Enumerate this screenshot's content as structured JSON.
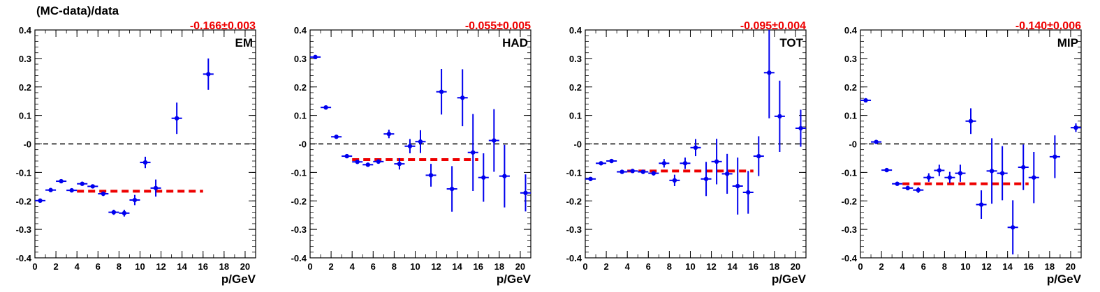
{
  "y_axis_label": "(MC-data)/data",
  "chart_data": [
    {
      "type": "scatter",
      "panel_label": "EM",
      "fit_value": "-0.166±0.003",
      "xlabel": "p/GeV",
      "xlim": [
        0,
        21
      ],
      "ylim": [
        -0.4,
        0.4
      ],
      "x_ticks": [
        0,
        2,
        4,
        6,
        8,
        10,
        12,
        14,
        16,
        18,
        20
      ],
      "y_ticks": [
        0.4,
        0.3,
        0.2,
        0.1,
        0,
        -0.1,
        -0.2,
        -0.3,
        -0.4
      ],
      "y_tick_labels": [
        "0.4",
        "0.3",
        "0.2",
        "0.1",
        "-0",
        "-0.1",
        "-0.2",
        "-0.3",
        "-0.4"
      ],
      "reference_line": 0,
      "fit_line": {
        "value": -0.166,
        "x_range": [
          4,
          16
        ]
      },
      "points": [
        {
          "x": 0.5,
          "y": -0.199,
          "err": 0.004
        },
        {
          "x": 1.5,
          "y": -0.162,
          "err": 0.005
        },
        {
          "x": 2.5,
          "y": -0.131,
          "err": 0.005
        },
        {
          "x": 3.5,
          "y": -0.163,
          "err": 0.005
        },
        {
          "x": 4.5,
          "y": -0.14,
          "err": 0.006
        },
        {
          "x": 5.5,
          "y": -0.149,
          "err": 0.007
        },
        {
          "x": 6.5,
          "y": -0.175,
          "err": 0.008
        },
        {
          "x": 7.5,
          "y": -0.24,
          "err": 0.009
        },
        {
          "x": 8.5,
          "y": -0.243,
          "err": 0.012
        },
        {
          "x": 9.5,
          "y": -0.197,
          "err": 0.018
        },
        {
          "x": 10.5,
          "y": -0.065,
          "err": 0.02
        },
        {
          "x": 11.5,
          "y": -0.155,
          "err": 0.03
        },
        {
          "x": 13.5,
          "y": 0.09,
          "err": 0.055
        },
        {
          "x": 16.5,
          "y": 0.245,
          "err": 0.055
        }
      ]
    },
    {
      "type": "scatter",
      "panel_label": "HAD",
      "fit_value": "-0.055±0.005",
      "xlabel": "p/GeV",
      "xlim": [
        0,
        21
      ],
      "ylim": [
        -0.4,
        0.4
      ],
      "x_ticks": [
        0,
        2,
        4,
        6,
        8,
        10,
        12,
        14,
        16,
        18,
        20
      ],
      "y_ticks": [
        0.4,
        0.3,
        0.2,
        0.1,
        0,
        -0.1,
        -0.2,
        -0.3,
        -0.4
      ],
      "y_tick_labels": [
        "0.4",
        "0.3",
        "0.2",
        "0.1",
        "-0",
        "-0.1",
        "-0.2",
        "-0.3",
        "-0.4"
      ],
      "reference_line": 0,
      "fit_line": {
        "value": -0.055,
        "x_range": [
          4,
          16
        ]
      },
      "points": [
        {
          "x": 0.5,
          "y": 0.305,
          "err": 0.004
        },
        {
          "x": 1.5,
          "y": 0.128,
          "err": 0.004
        },
        {
          "x": 2.5,
          "y": 0.025,
          "err": 0.005
        },
        {
          "x": 3.5,
          "y": -0.043,
          "err": 0.005
        },
        {
          "x": 4.5,
          "y": -0.063,
          "err": 0.006
        },
        {
          "x": 5.5,
          "y": -0.073,
          "err": 0.007
        },
        {
          "x": 6.5,
          "y": -0.062,
          "err": 0.008
        },
        {
          "x": 7.5,
          "y": 0.035,
          "err": 0.015
        },
        {
          "x": 8.5,
          "y": -0.07,
          "err": 0.02
        },
        {
          "x": 9.5,
          "y": -0.008,
          "err": 0.025
        },
        {
          "x": 10.5,
          "y": 0.008,
          "err": 0.04
        },
        {
          "x": 11.5,
          "y": -0.11,
          "err": 0.04
        },
        {
          "x": 12.5,
          "y": 0.183,
          "err": 0.08
        },
        {
          "x": 13.5,
          "y": -0.158,
          "err": 0.08
        },
        {
          "x": 14.5,
          "y": 0.162,
          "err": 0.1
        },
        {
          "x": 15.5,
          "y": -0.03,
          "err": 0.135
        },
        {
          "x": 16.5,
          "y": -0.118,
          "err": 0.085
        },
        {
          "x": 17.5,
          "y": 0.012,
          "err": 0.11
        },
        {
          "x": 18.5,
          "y": -0.113,
          "err": 0.11
        },
        {
          "x": 20.5,
          "y": -0.172,
          "err": 0.065
        }
      ]
    },
    {
      "type": "scatter",
      "panel_label": "TOT",
      "fit_value": "-0.095±0.004",
      "xlabel": "p/GeV",
      "xlim": [
        0,
        21
      ],
      "ylim": [
        -0.4,
        0.4
      ],
      "x_ticks": [
        0,
        2,
        4,
        6,
        8,
        10,
        12,
        14,
        16,
        18,
        20
      ],
      "y_ticks": [
        0.4,
        0.3,
        0.2,
        0.1,
        0,
        -0.1,
        -0.2,
        -0.3,
        -0.4
      ],
      "y_tick_labels": [
        "0.4",
        "0.3",
        "0.2",
        "0.1",
        "-0",
        "-0.1",
        "-0.2",
        "-0.3",
        "-0.4"
      ],
      "reference_line": 0,
      "fit_line": {
        "value": -0.095,
        "x_range": [
          4,
          16
        ]
      },
      "points": [
        {
          "x": 0.5,
          "y": -0.123,
          "err": 0.005
        },
        {
          "x": 1.5,
          "y": -0.068,
          "err": 0.005
        },
        {
          "x": 2.5,
          "y": -0.06,
          "err": 0.005
        },
        {
          "x": 3.5,
          "y": -0.098,
          "err": 0.005
        },
        {
          "x": 4.5,
          "y": -0.095,
          "err": 0.006
        },
        {
          "x": 5.5,
          "y": -0.098,
          "err": 0.007
        },
        {
          "x": 6.5,
          "y": -0.103,
          "err": 0.008
        },
        {
          "x": 7.5,
          "y": -0.068,
          "err": 0.015
        },
        {
          "x": 8.5,
          "y": -0.128,
          "err": 0.02
        },
        {
          "x": 9.5,
          "y": -0.068,
          "err": 0.02
        },
        {
          "x": 10.5,
          "y": -0.013,
          "err": 0.03
        },
        {
          "x": 11.5,
          "y": -0.123,
          "err": 0.06
        },
        {
          "x": 12.5,
          "y": -0.062,
          "err": 0.08
        },
        {
          "x": 13.5,
          "y": -0.105,
          "err": 0.07
        },
        {
          "x": 14.5,
          "y": -0.148,
          "err": 0.1
        },
        {
          "x": 15.5,
          "y": -0.17,
          "err": 0.075
        },
        {
          "x": 16.5,
          "y": -0.043,
          "err": 0.07
        },
        {
          "x": 17.5,
          "y": 0.25,
          "err": 0.16
        },
        {
          "x": 18.5,
          "y": 0.097,
          "err": 0.125
        },
        {
          "x": 20.5,
          "y": 0.055,
          "err": 0.065
        }
      ]
    },
    {
      "type": "scatter",
      "panel_label": "MIP",
      "fit_value": "-0.140±0.006",
      "xlabel": "p/GeV",
      "xlim": [
        0,
        21
      ],
      "ylim": [
        -0.4,
        0.4
      ],
      "x_ticks": [
        0,
        2,
        4,
        6,
        8,
        10,
        12,
        14,
        16,
        18,
        20
      ],
      "y_ticks": [
        0.4,
        0.3,
        0.2,
        0.1,
        0,
        -0.1,
        -0.2,
        -0.3,
        -0.4
      ],
      "y_tick_labels": [
        "0.4",
        "0.3",
        "0.2",
        "0.1",
        "-0",
        "-0.1",
        "-0.2",
        "-0.3",
        "-0.4"
      ],
      "reference_line": 0,
      "fit_line": {
        "value": -0.14,
        "x_range": [
          4,
          16
        ]
      },
      "points": [
        {
          "x": 0.5,
          "y": 0.153,
          "err": 0.005
        },
        {
          "x": 1.5,
          "y": 0.007,
          "err": 0.005
        },
        {
          "x": 2.5,
          "y": -0.092,
          "err": 0.005
        },
        {
          "x": 3.5,
          "y": -0.14,
          "err": 0.005
        },
        {
          "x": 4.5,
          "y": -0.155,
          "err": 0.008
        },
        {
          "x": 5.5,
          "y": -0.162,
          "err": 0.01
        },
        {
          "x": 6.5,
          "y": -0.118,
          "err": 0.015
        },
        {
          "x": 7.5,
          "y": -0.093,
          "err": 0.02
        },
        {
          "x": 8.5,
          "y": -0.118,
          "err": 0.02
        },
        {
          "x": 9.5,
          "y": -0.103,
          "err": 0.03
        },
        {
          "x": 10.5,
          "y": 0.08,
          "err": 0.045
        },
        {
          "x": 11.5,
          "y": -0.213,
          "err": 0.05
        },
        {
          "x": 12.5,
          "y": -0.095,
          "err": 0.115
        },
        {
          "x": 13.5,
          "y": -0.103,
          "err": 0.095
        },
        {
          "x": 14.5,
          "y": -0.293,
          "err": 0.095
        },
        {
          "x": 15.5,
          "y": -0.082,
          "err": 0.08
        },
        {
          "x": 16.5,
          "y": -0.118,
          "err": 0.09
        },
        {
          "x": 18.5,
          "y": -0.045,
          "err": 0.075
        },
        {
          "x": 20.5,
          "y": 0.057,
          "err": 0.015
        }
      ]
    }
  ],
  "colors": {
    "points": "#0000ee",
    "fit_line": "#ee0000",
    "fit_text": "#ee0000",
    "axes": "#000000"
  }
}
